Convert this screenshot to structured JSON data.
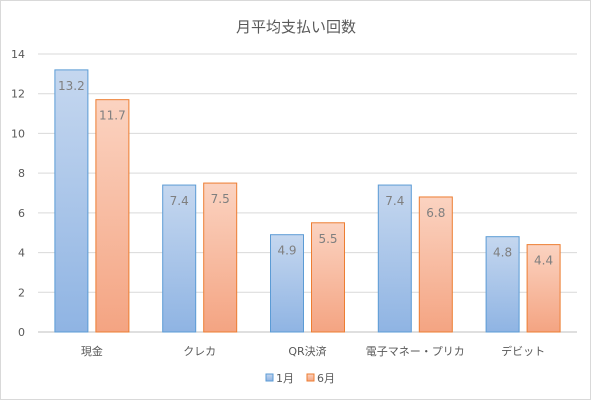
{
  "chart_data": {
    "type": "bar",
    "title": "月平均支払い回数",
    "categories": [
      "現金",
      "クレカ",
      "QR決済",
      "電子マネー・プリカ",
      "デビット"
    ],
    "series": [
      {
        "name": "1月",
        "values": [
          13.2,
          7.4,
          4.9,
          7.4,
          4.8
        ],
        "fill_top": "#c5d7ef",
        "fill_bottom": "#8fb4e3",
        "stroke": "#5b9bd5"
      },
      {
        "name": "6月",
        "values": [
          11.7,
          7.5,
          5.5,
          6.8,
          4.4
        ],
        "fill_top": "#fbd3c1",
        "fill_bottom": "#f4a482",
        "stroke": "#ed7d31"
      }
    ],
    "ylim": [
      0,
      14
    ],
    "yticks": [
      0,
      2,
      4,
      6,
      8,
      10,
      12,
      14
    ],
    "grid": true,
    "legend": "bottom",
    "xlabel": "",
    "ylabel": ""
  }
}
